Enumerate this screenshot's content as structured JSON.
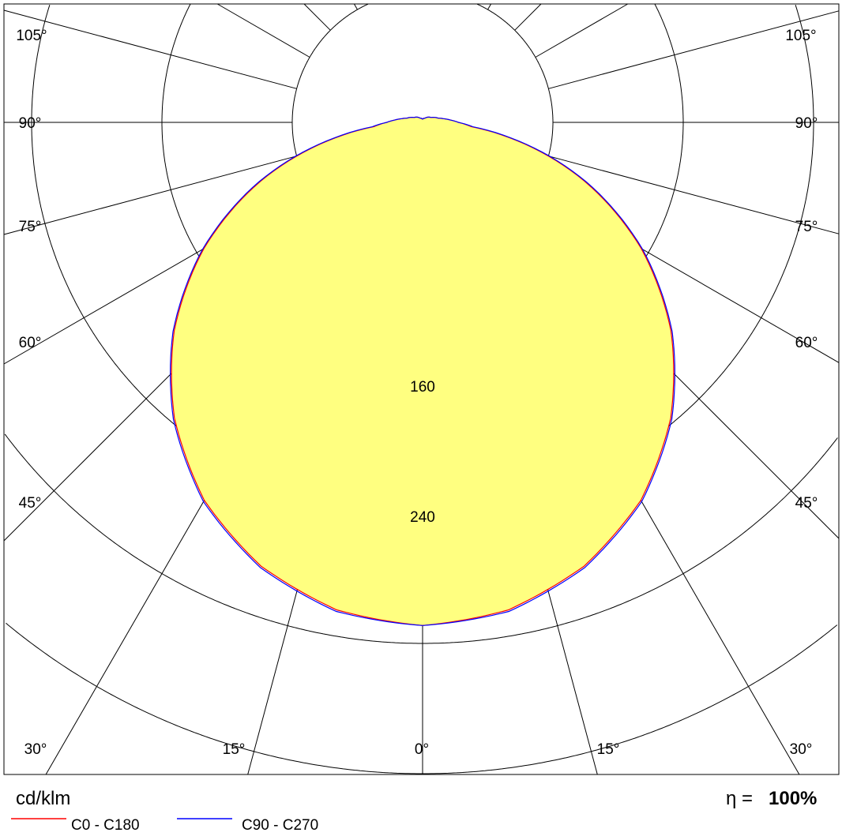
{
  "chart_data": {
    "type": "polar-line",
    "unit_label": "cd/klm",
    "efficiency_symbol": "η =",
    "efficiency_value": "100%",
    "radial_ticks": [
      {
        "value": 160,
        "label": "160"
      },
      {
        "value": 240,
        "label": "240"
      }
    ],
    "radial_circles": [
      80,
      160,
      240,
      320,
      400
    ],
    "angle_ticks": [
      0,
      15,
      30,
      45,
      60,
      75,
      90,
      105
    ],
    "angle_tick_labels": [
      "0°",
      "15°",
      "30°",
      "45°",
      "60°",
      "75°",
      "90°",
      "105°"
    ],
    "angle_lines_step_deg": 15,
    "fill_color": "#ffff80",
    "angles_deg": [
      0,
      10,
      20,
      30,
      40,
      50,
      60,
      70,
      80,
      85,
      90,
      95,
      100,
      105,
      120,
      150,
      180
    ],
    "series": [
      {
        "name": "C0 - C180",
        "color": "#ff0000",
        "values": [
          309,
          304,
          290,
          268,
          237,
          199,
          155,
          106,
          54,
          30,
          22,
          17,
          13,
          10,
          6,
          3,
          2
        ]
      },
      {
        "name": "C90 - C270",
        "color": "#0000ff",
        "values": [
          309,
          305,
          291,
          269,
          238,
          200,
          156,
          107,
          55,
          31,
          22,
          17,
          13,
          10,
          6,
          3,
          2
        ]
      }
    ]
  }
}
